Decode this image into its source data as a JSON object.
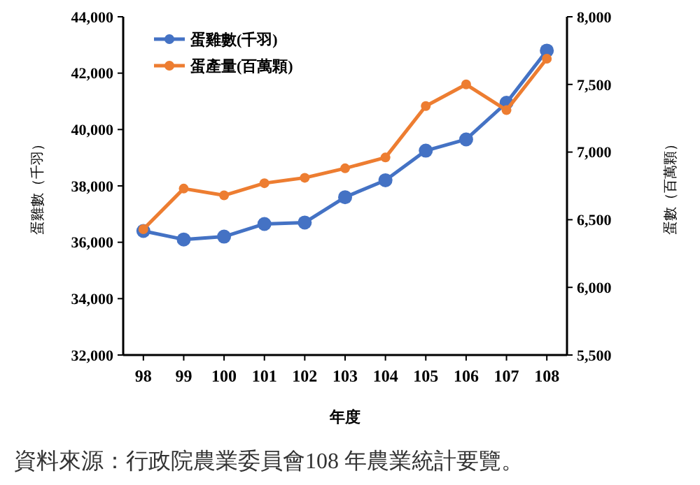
{
  "chart_data": {
    "type": "line",
    "categories": [
      "98",
      "99",
      "100",
      "101",
      "102",
      "103",
      "104",
      "105",
      "106",
      "107",
      "108"
    ],
    "xlabel": "年度",
    "ylabel": "蛋雞數（千羽）",
    "y2label": "蛋數（百萬顆）",
    "series": [
      {
        "name": "蛋雞數(千羽)",
        "color": "#4472c4",
        "values": [
          36400,
          36100,
          36200,
          36650,
          36700,
          37600,
          38200,
          39250,
          39650,
          40950,
          42800
        ]
      },
      {
        "name": "蛋產量(百萬顆)",
        "color": "#ed7d31",
        "axis": "y2",
        "values": [
          6430,
          6730,
          6680,
          6770,
          6810,
          6880,
          6960,
          7340,
          7500,
          7310,
          7690
        ]
      }
    ],
    "ylim": [
      32000,
      44000
    ],
    "yticks": [
      {
        "value": 32000,
        "label": "32,000"
      },
      {
        "value": 34000,
        "label": "34,000"
      },
      {
        "value": 36000,
        "label": "36,000"
      },
      {
        "value": 38000,
        "label": "38,000"
      },
      {
        "value": 40000,
        "label": "40,000"
      },
      {
        "value": 42000,
        "label": "42,000"
      },
      {
        "value": 44000,
        "label": "44,000"
      }
    ],
    "y2lim": [
      5500,
      8000
    ],
    "y2ticks": [
      {
        "value": 5500,
        "label": "5,500"
      },
      {
        "value": 6000,
        "label": "6,000"
      },
      {
        "value": 6500,
        "label": "6,500"
      },
      {
        "value": 7000,
        "label": "7,000"
      },
      {
        "value": 7500,
        "label": "7,500"
      },
      {
        "value": 8000,
        "label": "8,000"
      }
    ],
    "legend": "top left",
    "marker": "circle",
    "line_style": "solid",
    "grid": false,
    "annotations": [
      "資料來源：行政院農業委員會108 年農業統計要覽。"
    ]
  }
}
